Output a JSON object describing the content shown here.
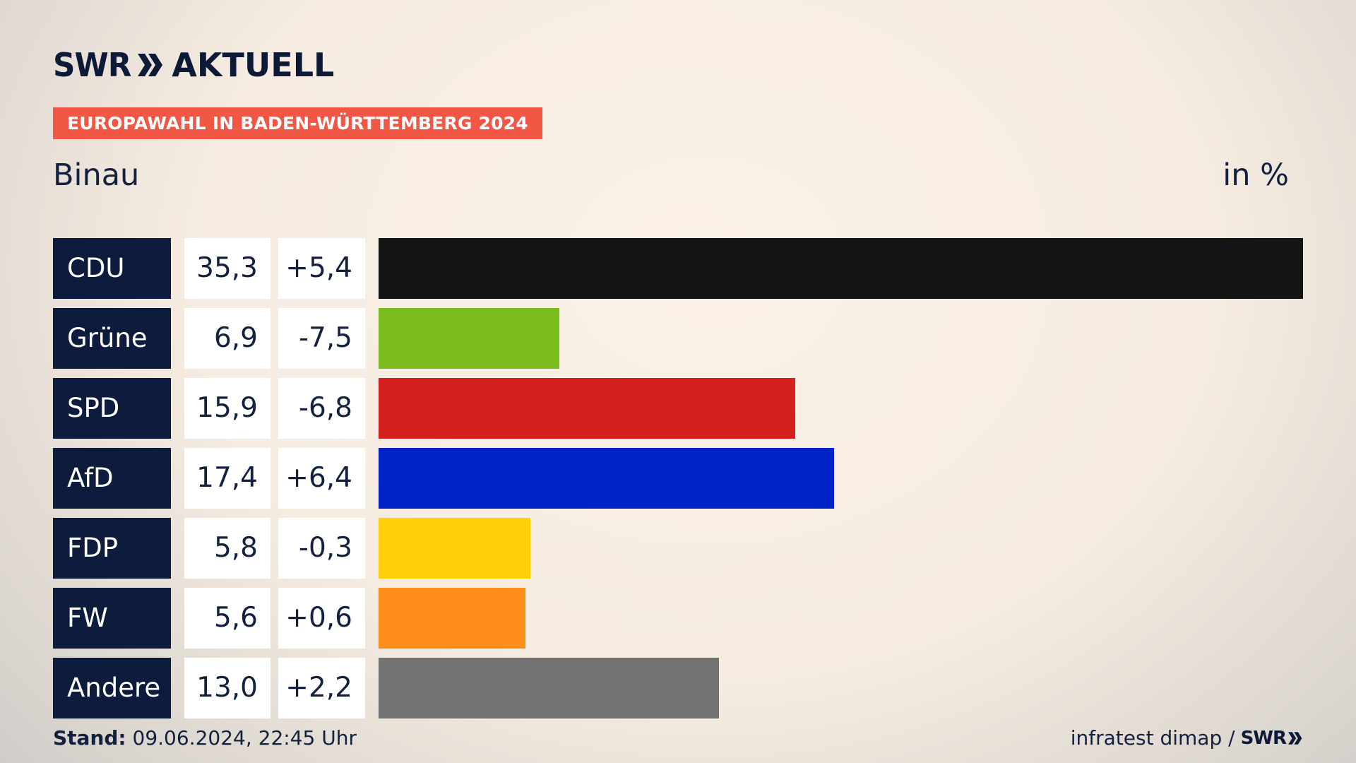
{
  "brand": {
    "swr": "SWR",
    "aktuell": "AKTUELL",
    "logo_icon": "double-chevron-icon"
  },
  "header": {
    "badge": "EUROPAWAHL IN BADEN-WÜRTTEMBERG 2024",
    "region": "Binau",
    "unit": "in %"
  },
  "colors": {
    "badge": "#f25746",
    "party_cell": "#0d1c3d"
  },
  "chart_data": {
    "type": "bar",
    "orientation": "horizontal",
    "title": "Binau",
    "unit": "in %",
    "categories": [
      "CDU",
      "Grüne",
      "SPD",
      "AfD",
      "FDP",
      "FW",
      "Andere"
    ],
    "values": [
      35.3,
      6.9,
      15.9,
      17.4,
      5.8,
      5.6,
      13.0
    ],
    "changes": [
      5.4,
      -7.5,
      -6.8,
      6.4,
      -0.3,
      0.6,
      2.2
    ],
    "value_labels": [
      "35,3",
      "6,9",
      "15,9",
      "17,4",
      "5,8",
      "5,6",
      "13,0"
    ],
    "change_labels": [
      "+5,4",
      "-7,5",
      "-6,8",
      "+6,4",
      "-0,3",
      "+0,6",
      "+2,2"
    ],
    "colors": [
      "#141414",
      "#7bbd1e",
      "#d61f1f",
      "#0021c6",
      "#ffcf0a",
      "#ff8d1a",
      "#727272"
    ]
  },
  "footer": {
    "stand_label": "Stand:",
    "stand_value": "09.06.2024, 22:45 Uhr",
    "source": "infratest dimap /",
    "source_brand": "SWR"
  }
}
